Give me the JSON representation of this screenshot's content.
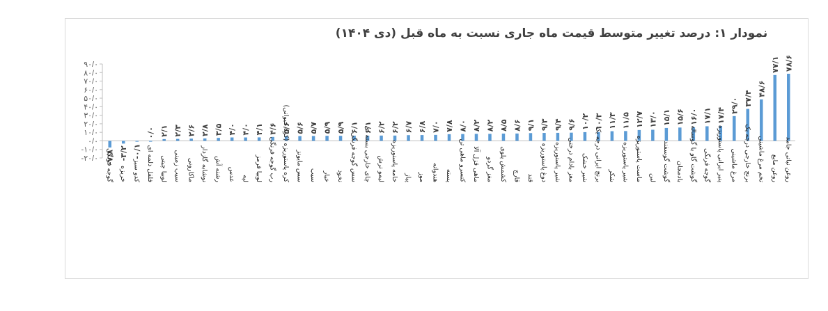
{
  "chart_data": {
    "type": "bar",
    "title": "نمودار ۱: درصد تغییر متوسط قیمت ماه جاری نسبت به ماه قبل (دی ۱۴۰۴)",
    "xlabel": "",
    "ylabel": "",
    "ylim": [
      -20,
      90
    ],
    "y_ticks": [
      -20,
      -10,
      0,
      10,
      20,
      30,
      40,
      50,
      60,
      70,
      80,
      90
    ],
    "y_tick_labels": [
      "-۲۰/۰",
      "-۱۰/۰",
      "۰/۰",
      "۱۰/۰",
      "۲۰/۰",
      "۳۰/۰",
      "۴۰/۰",
      "۵۰/۰",
      "۶۰/۰",
      "۷۰/۰",
      "۸۰/۰",
      "۹۰/۰"
    ],
    "grid": false,
    "legend": "none",
    "bar_color": "#5b9bd5",
    "categories": [
      "گوجه فرنگی",
      "خربزه",
      "کدو سبز",
      "فلفل دلمه ای",
      "لوبیا چیتی",
      "سیب زمینی",
      "ماکارونی",
      "نوشابه گازدار",
      "رشته آش",
      "عدس",
      "لپه",
      "لوبیا قرمز",
      "رب گوجه فرنگی",
      "کره پاستوریزه (کره حیوانی)",
      "سس مایونز",
      "سیب",
      "خیار",
      "نخود",
      "سس گوجه فرنگی",
      "چای خارجی بسته ای",
      "لیمو ترش",
      "خامه پاستوریزه",
      "پیاز",
      "موز",
      "هندوانه",
      "پسته",
      "کنسرو ماهی تن",
      "ماهی قزل آلا",
      "مغز گردو",
      "کشمش پلوی",
      "قارچ",
      "قند",
      "دوغ پاستوریزه",
      "شیر پاستوریزه",
      "مغز بادام درختی",
      "شیر خشک",
      "برنج ایرانی درجه یک",
      "شکر",
      "شیر پاستوریزه",
      "ماست پاستوریزه",
      "لبن",
      "گوشت گوسفند",
      "بادمجان",
      "گوشت گاو یا گوساله",
      "گوجه فرنگی",
      "پنیر ایرانی پاستوریزه",
      "مرغ ماشینی",
      "برنج خارجی درجه یک",
      "تخم مرغ ماشینی",
      "روغن مایع",
      "روغن نباتی جامد"
    ],
    "values": [
      -7.8,
      -3.2,
      -0.1,
      0.0,
      2.1,
      2.3,
      2.6,
      2.8,
      3.5,
      4.0,
      4.0,
      4.1,
      4.6,
      5.6,
      5.6,
      5.7,
      5.9,
      5.9,
      6.1,
      6.1,
      6.2,
      6.2,
      6.7,
      6.8,
      7.0,
      7.8,
      8.0,
      8.2,
      8.2,
      8.5,
      8.6,
      9.1,
      9.3,
      9.4,
      9.6,
      10.2,
      10.3,
      11.3,
      11.5,
      12.7,
      13.0,
      15.1,
      15.6,
      16.0,
      17.1,
      17.4,
      29.0,
      37.4,
      48.6,
      77.1,
      78.6
    ],
    "data_labels": [
      "-۷/۸",
      "-۳/۲",
      "-۰/۱",
      "۰/۰",
      "۲/۱",
      "۲/۳",
      "۲/۶",
      "۲/۸",
      "۳/۵",
      "۴/۰",
      "۴/۰",
      "۴/۱",
      "۴/۶",
      "۵/۶",
      "۵/۶",
      "۵/۷",
      "۵/۹",
      "۵/۹",
      "۶/۱",
      "۶/۱",
      "۶/۲",
      "۶/۲",
      "۶/۷",
      "۶/۸",
      "۷/۰",
      "۷/۸",
      "۸/۰",
      "۸/۲",
      "۸/۲",
      "۸/۵",
      "۸/۶",
      "۹/۱",
      "۹/۳",
      "۹/۴",
      "۹/۶",
      "۱۰/۲",
      "۱۰/۳",
      "۱۱/۳",
      "۱۱/۵",
      "۱۲/۷",
      "۱۳/۰",
      "۱۵/۱",
      "۱۵/۶",
      "۱۶/۰",
      "۱۷/۱",
      "۱۷/۴",
      "۲۹/۰",
      "۳۷/۴",
      "۴۸/۶",
      "۷۷/۱",
      "۷۸/۶"
    ]
  }
}
